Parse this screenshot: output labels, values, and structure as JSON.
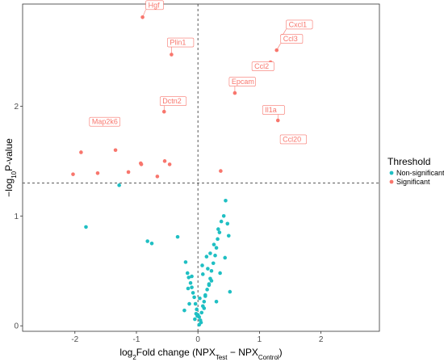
{
  "chart_data": {
    "type": "scatter",
    "xlabel_parts": [
      "log",
      "2",
      "Fold change (NPX",
      "Test",
      " − NPX",
      "Control",
      ")"
    ],
    "ylabel_parts": [
      "−log",
      "10",
      "P-value"
    ],
    "xlim": [
      -2.85,
      2.95
    ],
    "ylim": [
      -0.05,
      2.93
    ],
    "xticks": [
      -2,
      -1,
      0,
      1,
      2
    ],
    "yticks": [
      0,
      1,
      2
    ],
    "vline_x": 0,
    "hline_y": 1.3,
    "grid": false,
    "legend": {
      "title": "Threshold",
      "position": "right",
      "entries": [
        {
          "name": "Non-significant",
          "color": "#1fbfc3"
        },
        {
          "name": "Significant",
          "color": "#f8766d"
        }
      ]
    },
    "series": [
      {
        "name": "Non-significant",
        "color": "#1fbfc3",
        "x": [
          -1.82,
          -1.28,
          -0.82,
          -0.75,
          -0.33,
          -0.2,
          -0.17,
          -0.15,
          -0.12,
          -0.1,
          -0.08,
          -0.06,
          -0.04,
          -0.02,
          0.0,
          0.02,
          0.04,
          0.06,
          0.08,
          0.1,
          0.12,
          0.15,
          0.18,
          0.2,
          0.22,
          0.25,
          0.28,
          0.3,
          0.32,
          0.35,
          0.38,
          0.42,
          0.45,
          0.48,
          0.5,
          0.52,
          0.05,
          -0.05,
          0.1,
          -0.1,
          0.14,
          -0.14,
          0.08,
          -0.03,
          0.03,
          0.16,
          -0.16,
          0.2,
          0.26,
          0.33,
          0.22,
          -0.22,
          0.12,
          0.18,
          0.02,
          -0.01,
          0.07,
          0.3,
          0.36,
          0.44
        ],
        "y": [
          0.9,
          1.28,
          0.77,
          0.75,
          0.81,
          0.58,
          0.48,
          0.44,
          0.39,
          0.35,
          0.3,
          0.26,
          0.2,
          0.15,
          0.1,
          0.08,
          0.05,
          0.12,
          0.18,
          0.22,
          0.28,
          0.33,
          0.38,
          0.43,
          0.5,
          0.57,
          0.64,
          0.71,
          0.79,
          0.85,
          0.95,
          1.0,
          1.14,
          0.93,
          0.82,
          0.31,
          0.03,
          0.06,
          0.16,
          0.45,
          0.63,
          0.2,
          0.47,
          0.11,
          0.25,
          0.52,
          0.34,
          0.66,
          0.74,
          0.88,
          0.41,
          0.14,
          0.27,
          0.37,
          0.01,
          0.09,
          0.55,
          0.22,
          0.48,
          0.62
        ]
      },
      {
        "name": "Significant",
        "color": "#f8766d",
        "x": [
          -0.9,
          -0.43,
          1.37,
          1.28,
          1.18,
          0.6,
          1.3,
          1.39,
          -0.55,
          -1.33,
          -1.9,
          -1.34,
          -2.03,
          -1.63,
          -1.13,
          -0.93,
          -0.92,
          -0.54,
          -0.46,
          -0.66,
          0.37
        ],
        "y": [
          2.81,
          2.47,
          2.64,
          2.51,
          2.4,
          2.12,
          1.87,
          1.72,
          1.95,
          1.88,
          1.58,
          1.6,
          1.38,
          1.39,
          1.4,
          1.48,
          1.47,
          1.5,
          1.47,
          1.36,
          1.41
        ]
      }
    ],
    "annotations": [
      {
        "text": "Hgf",
        "x": -0.9,
        "y": 2.81
      },
      {
        "text": "Plin1",
        "x": -0.43,
        "y": 2.47
      },
      {
        "text": "Cxcl1",
        "x": 1.37,
        "y": 2.64
      },
      {
        "text": "Ccl3",
        "x": 1.28,
        "y": 2.51
      },
      {
        "text": "Ccl2",
        "x": 1.18,
        "y": 2.4
      },
      {
        "text": "Epcam",
        "x": 0.6,
        "y": 2.12
      },
      {
        "text": "Il1a",
        "x": 1.3,
        "y": 1.87
      },
      {
        "text": "Ccl20",
        "x": 1.39,
        "y": 1.72
      },
      {
        "text": "Dctn2",
        "x": -0.55,
        "y": 1.95
      },
      {
        "text": "Map2k6",
        "x": -1.33,
        "y": 1.88
      }
    ]
  }
}
